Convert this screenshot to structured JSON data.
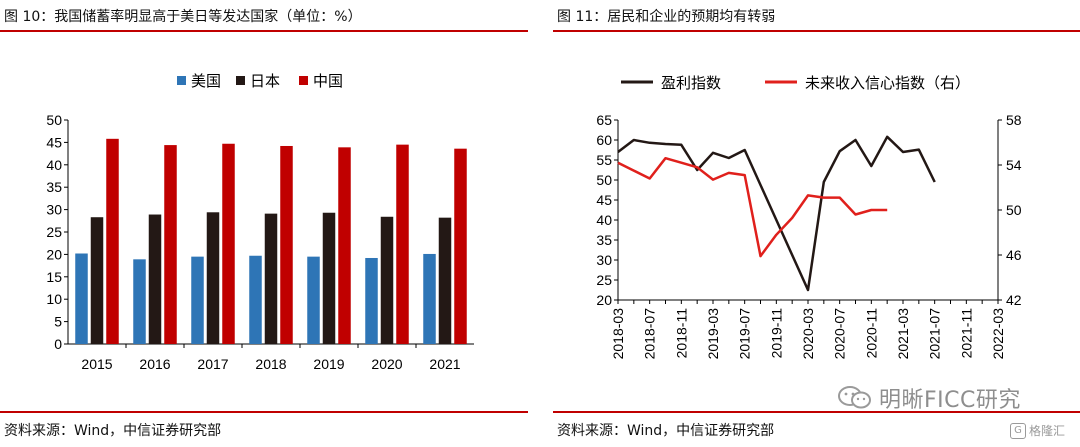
{
  "left": {
    "title": "图 10：我国储蓄率明显高于美日等发达国家（单位：%）",
    "source": "资料来源：Wind，中信证券研究部"
  },
  "right": {
    "title": "图 11：居民和企业的预期均有转弱",
    "source": "资料来源：Wind，中信证券研究部"
  },
  "watermark": {
    "text": "明晰FICC研究",
    "badge_text": "格隆汇",
    "badge_icon": "G"
  },
  "chart_data": [
    {
      "type": "bar",
      "categories": [
        "2015",
        "2016",
        "2017",
        "2018",
        "2019",
        "2020",
        "2021"
      ],
      "series": [
        {
          "name": "美国",
          "color": "#2e75b6",
          "values": [
            20.2,
            18.9,
            19.5,
            19.7,
            19.5,
            19.2,
            20.1
          ]
        },
        {
          "name": "日本",
          "color": "#231815",
          "values": [
            28.3,
            28.9,
            29.4,
            29.1,
            29.3,
            28.4,
            28.2
          ]
        },
        {
          "name": "中国",
          "color": "#c00000",
          "values": [
            45.8,
            44.4,
            44.7,
            44.2,
            43.9,
            44.5,
            43.6
          ]
        }
      ],
      "ylim": [
        0,
        50
      ],
      "yticks": [
        "0",
        "5",
        "10",
        "15",
        "20",
        "25",
        "30",
        "35",
        "40",
        "45",
        "50"
      ],
      "legend_position": "top",
      "grid": false
    },
    {
      "type": "line",
      "x": [
        "2018-03",
        "2018-05",
        "2018-07",
        "2018-09",
        "2018-11",
        "2019-01",
        "2019-03",
        "2019-05",
        "2019-07",
        "2019-09",
        "2019-11",
        "2020-01",
        "2020-03",
        "2020-05",
        "2020-07",
        "2020-09",
        "2020-11",
        "2021-01",
        "2021-03",
        "2021-05",
        "2021-07",
        "2021-09",
        "2021-11",
        "2022-01",
        "2022-03"
      ],
      "xticks": [
        "2018-03",
        "2018-07",
        "2018-11",
        "2019-03",
        "2019-07",
        "2019-11",
        "2020-03",
        "2020-07",
        "2020-11",
        "2021-03",
        "2021-07",
        "2021-11",
        "2022-03"
      ],
      "series": [
        {
          "name": "盈利指数",
          "color": "#231815",
          "axis": "left",
          "values": [
            57,
            60,
            59.3,
            59,
            58.8,
            52.5,
            56.8,
            55.5,
            57.5,
            null,
            null,
            null,
            22.5,
            49.5,
            57.2,
            60,
            53.5,
            60.8,
            57,
            57.6,
            49.5,
            null,
            null,
            null,
            null
          ]
        },
        {
          "name": "未来收入信心指数（右）",
          "color": "#e0201c",
          "axis": "right",
          "values": [
            54.2,
            53.5,
            52.8,
            54.6,
            54.2,
            53.8,
            52.7,
            53.3,
            53.1,
            45.9,
            47.8,
            49.3,
            51.3,
            51.1,
            51.1,
            49.6,
            50,
            50,
            null,
            null,
            null,
            null,
            null,
            null,
            null
          ]
        }
      ],
      "y_left": {
        "lim": [
          20,
          65
        ],
        "ticks": [
          "20",
          "25",
          "30",
          "35",
          "40",
          "45",
          "50",
          "55",
          "60",
          "65"
        ]
      },
      "y_right": {
        "lim": [
          42,
          58
        ],
        "ticks": [
          "42",
          "46",
          "50",
          "54",
          "58"
        ]
      },
      "legend_position": "top",
      "grid": false
    }
  ]
}
